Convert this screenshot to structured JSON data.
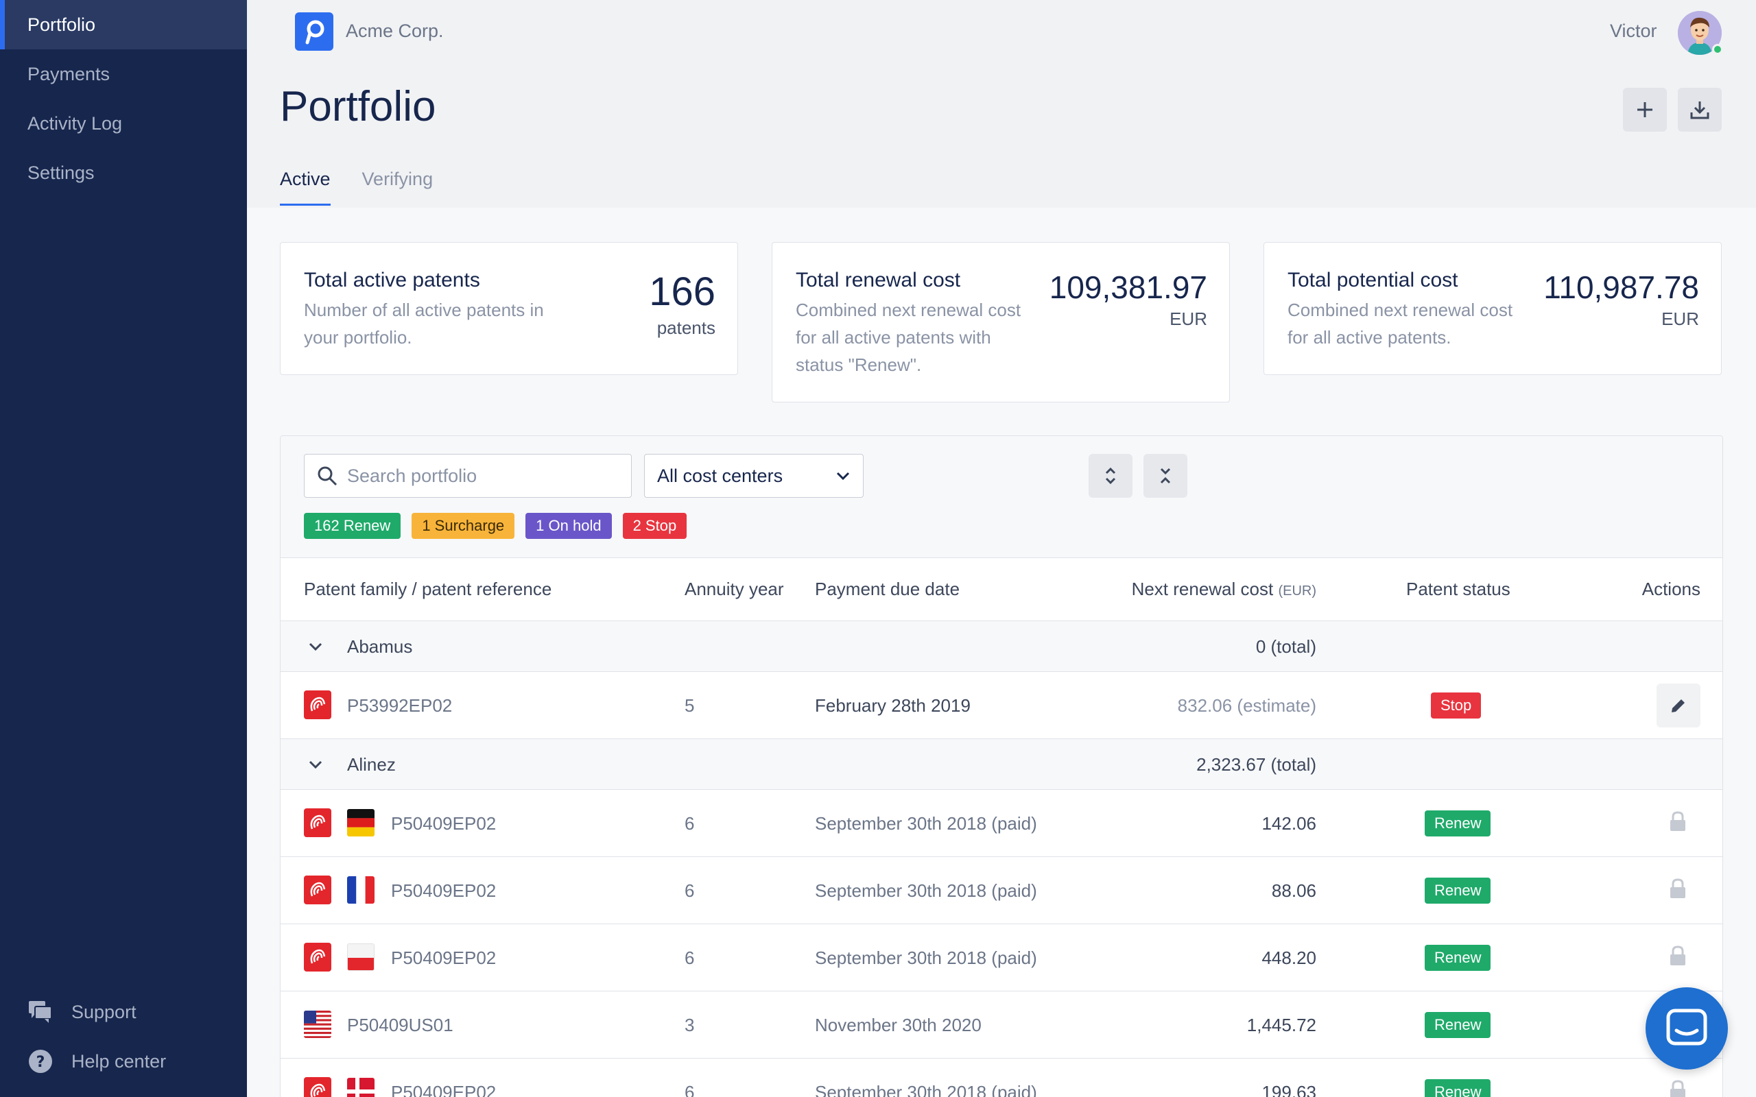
{
  "sidebar": {
    "items": [
      {
        "label": "Portfolio",
        "active": true
      },
      {
        "label": "Payments"
      },
      {
        "label": "Activity Log"
      },
      {
        "label": "Settings"
      }
    ],
    "bottom": [
      {
        "label": "Support",
        "icon": "chat-icon"
      },
      {
        "label": "Help center",
        "icon": "help-icon"
      }
    ]
  },
  "header": {
    "logo_letter": "P",
    "company": "Acme Corp.",
    "user": "Victor",
    "title": "Portfolio"
  },
  "tabs": [
    {
      "label": "Active",
      "active": true
    },
    {
      "label": "Verifying"
    }
  ],
  "stats": [
    {
      "title": "Total active patents",
      "desc": "Number of all active patents in your portfolio.",
      "value": "166",
      "unit": "patents"
    },
    {
      "title": "Total renewal cost",
      "desc": "Combined next renewal cost for all active patents with status \"Renew\".",
      "value": "109,381.97",
      "unit": "EUR"
    },
    {
      "title": "Total potential cost",
      "desc": "Combined next renewal cost for all active patents.",
      "value": "110,987.78",
      "unit": "EUR"
    }
  ],
  "filters": {
    "search_placeholder": "Search portfolio",
    "cost_center": "All cost centers",
    "badges": [
      {
        "label": "162 Renew",
        "type": "renew"
      },
      {
        "label": "1 Surcharge",
        "type": "surcharge"
      },
      {
        "label": "1 On hold",
        "type": "hold"
      },
      {
        "label": "2 Stop",
        "type": "stop"
      }
    ]
  },
  "table": {
    "columns": {
      "family": "Patent family / patent reference",
      "year": "Annuity year",
      "due": "Payment due date",
      "cost": "Next renewal cost",
      "cost_unit": "(EUR)",
      "status": "Patent status",
      "actions": "Actions"
    },
    "groups": [
      {
        "name": "Abamus",
        "total": "0 (total)",
        "rows": [
          {
            "ref": "P53992EP02",
            "flag": "",
            "year": "5",
            "due": "February 28th 2019",
            "cost": "832.06 (estimate)",
            "status": "Stop",
            "action": "edit"
          }
        ]
      },
      {
        "name": "Alinez",
        "total": "2,323.67 (total)",
        "rows": [
          {
            "ref": "P50409EP02",
            "flag": "de",
            "year": "6",
            "due": "September 30th 2018 (paid)",
            "cost": "142.06",
            "status": "Renew",
            "action": "lock"
          },
          {
            "ref": "P50409EP02",
            "flag": "fr",
            "year": "6",
            "due": "September 30th 2018 (paid)",
            "cost": "88.06",
            "status": "Renew",
            "action": "lock"
          },
          {
            "ref": "P50409EP02",
            "flag": "pl",
            "year": "6",
            "due": "September 30th 2018 (paid)",
            "cost": "448.20",
            "status": "Renew",
            "action": "lock"
          },
          {
            "ref": "P50409US01",
            "flag": "us",
            "year": "3",
            "due": "November 30th 2020",
            "cost": "1,445.72",
            "status": "Renew",
            "action": "lock"
          },
          {
            "ref": "P50409EP02",
            "flag": "dk",
            "year": "6",
            "due": "September 30th 2018 (paid)",
            "cost": "199.63",
            "status": "Renew",
            "action": "lock"
          }
        ]
      }
    ]
  },
  "colors": {
    "sidebar": "#17264d",
    "accent": "#2c6df0",
    "renew": "#1faa6a",
    "surcharge": "#f8b43a",
    "hold": "#6a56c9",
    "stop": "#e8343f"
  }
}
